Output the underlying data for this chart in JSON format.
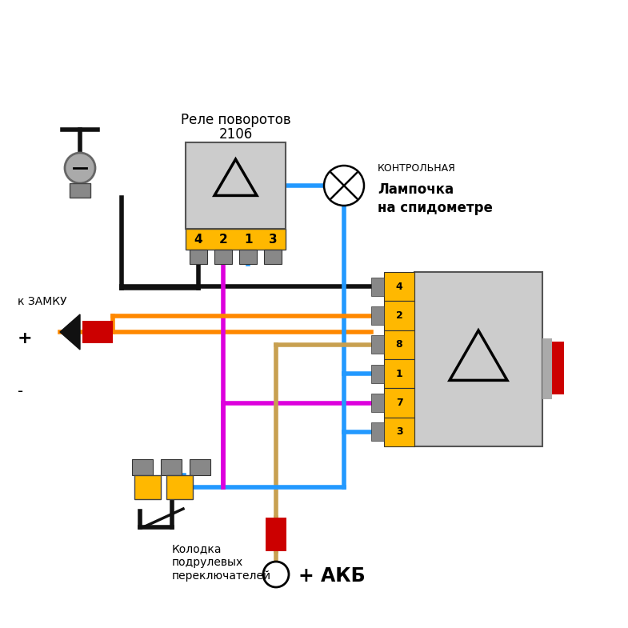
{
  "bg": "#ffffff",
  "label_relay1_1": "Реле поворотов",
  "label_relay1_2": "2106",
  "label_lamp1": "КОНТРОЛЬНАЯ",
  "label_lamp2": "Лампочка",
  "label_lamp3": "на спидометре",
  "label_zamok": "к ЗАМКУ",
  "label_plus": "+",
  "label_minus": "-",
  "label_akb": "+ АКБ",
  "label_sw1": "Колодка",
  "label_sw2": "подрулевых",
  "label_sw3": "переключателей",
  "relay1_pins": [
    "4",
    "2",
    "1",
    "3"
  ],
  "relay2_pins": [
    "4",
    "2",
    "8",
    "1",
    "7",
    "3"
  ],
  "BK": "#111111",
  "MG": "#DD00DD",
  "BL": "#2299FF",
  "OR": "#FF8800",
  "TN": "#C8A050",
  "YL": "#FFB800",
  "GR": "#888888",
  "BG": "#cccccc",
  "BE": "#555555",
  "RD": "#cc0000",
  "LW": 4.0
}
